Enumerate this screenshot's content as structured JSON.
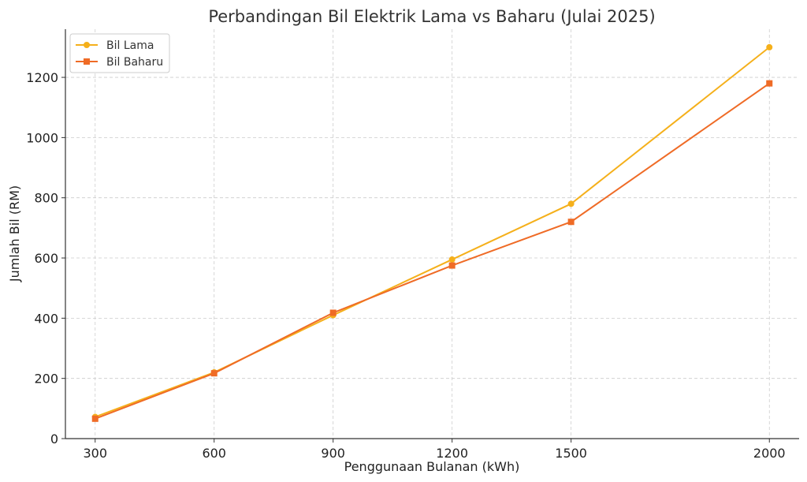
{
  "chart_data": {
    "type": "line",
    "title": "Perbandingan Bil Elektrik Lama vs Baharu (Julai 2025)",
    "xlabel": "Penggunaan Bulanan (kWh)",
    "ylabel": "Jumlah Bil (RM)",
    "x": [
      300,
      600,
      900,
      1200,
      1500,
      2000
    ],
    "xticks": [
      300,
      600,
      900,
      1200,
      1500,
      2000
    ],
    "yticks": [
      0,
      200,
      400,
      600,
      800,
      1000,
      1200
    ],
    "xlim": [
      225,
      2075
    ],
    "ylim": [
      0,
      1360
    ],
    "grid": true,
    "legend_position": "top-left",
    "series": [
      {
        "name": "Bil Lama",
        "values": [
          72,
          220,
          410,
          595,
          780,
          1300
        ],
        "color": "#f5b01b",
        "marker": "circle"
      },
      {
        "name": "Bil Baharu",
        "values": [
          66,
          217,
          418,
          575,
          720,
          1180
        ],
        "color": "#ef6b26",
        "marker": "square"
      }
    ]
  }
}
